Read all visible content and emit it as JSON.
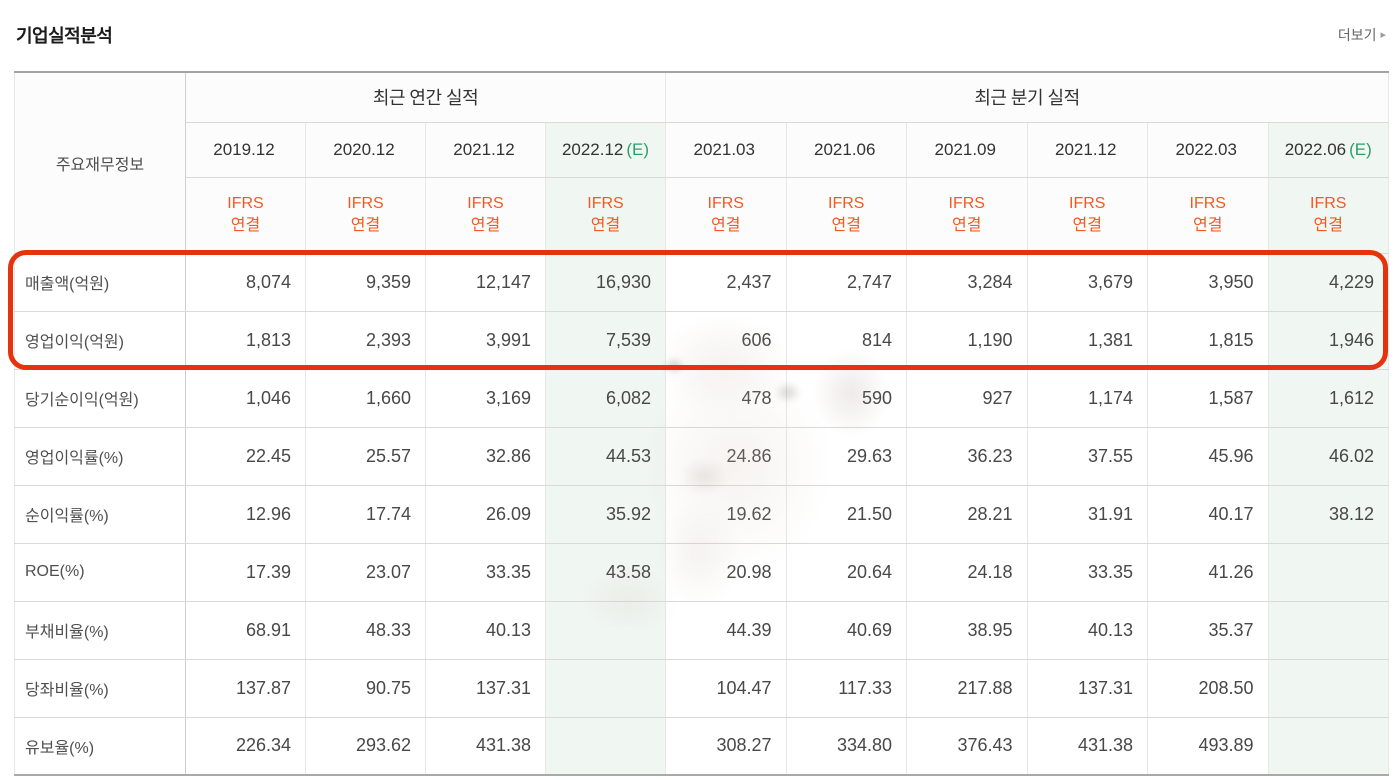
{
  "page": {
    "title": "기업실적분석",
    "more_label": "더보기",
    "more_arrow": "▶"
  },
  "colors": {
    "ifrs_orange": "#f15a22",
    "estimate_green": "#2d9f67",
    "estimate_column_bg": "#f0f6f2",
    "highlight_red": "#e5330e"
  },
  "table": {
    "corner_label": "주요재무정보",
    "groups": {
      "annual": "최근 연간 실적",
      "quarterly": "최근 분기 실적"
    },
    "ifrs_line1": "IFRS",
    "ifrs_line2": "연결",
    "annual_columns": [
      {
        "label": "2019.12",
        "suffix": ""
      },
      {
        "label": "2020.12",
        "suffix": ""
      },
      {
        "label": "2021.12",
        "suffix": ""
      },
      {
        "label": "2022.12",
        "suffix": "(E)"
      }
    ],
    "quarter_columns": [
      {
        "label": "2021.03",
        "suffix": ""
      },
      {
        "label": "2021.06",
        "suffix": ""
      },
      {
        "label": "2021.09",
        "suffix": ""
      },
      {
        "label": "2021.12",
        "suffix": ""
      },
      {
        "label": "2022.03",
        "suffix": ""
      },
      {
        "label": "2022.06",
        "suffix": "(E)"
      }
    ],
    "rows": [
      {
        "label": "매출액(억원)",
        "annual": [
          "8,074",
          "9,359",
          "12,147",
          "16,930"
        ],
        "quarterly": [
          "2,437",
          "2,747",
          "3,284",
          "3,679",
          "3,950",
          "4,229"
        ]
      },
      {
        "label": "영업이익(억원)",
        "annual": [
          "1,813",
          "2,393",
          "3,991",
          "7,539"
        ],
        "quarterly": [
          "606",
          "814",
          "1,190",
          "1,381",
          "1,815",
          "1,946"
        ]
      },
      {
        "label": "당기순이익(억원)",
        "annual": [
          "1,046",
          "1,660",
          "3,169",
          "6,082"
        ],
        "quarterly": [
          "478",
          "590",
          "927",
          "1,174",
          "1,587",
          "1,612"
        ]
      },
      {
        "label": "영업이익률(%)",
        "annual": [
          "22.45",
          "25.57",
          "32.86",
          "44.53"
        ],
        "quarterly": [
          "24.86",
          "29.63",
          "36.23",
          "37.55",
          "45.96",
          "46.02"
        ]
      },
      {
        "label": "순이익률(%)",
        "annual": [
          "12.96",
          "17.74",
          "26.09",
          "35.92"
        ],
        "quarterly": [
          "19.62",
          "21.50",
          "28.21",
          "31.91",
          "40.17",
          "38.12"
        ]
      },
      {
        "label": "ROE(%)",
        "annual": [
          "17.39",
          "23.07",
          "33.35",
          "43.58"
        ],
        "quarterly": [
          "20.98",
          "20.64",
          "24.18",
          "33.35",
          "41.26",
          ""
        ]
      },
      {
        "label": "부채비율(%)",
        "annual": [
          "68.91",
          "48.33",
          "40.13",
          ""
        ],
        "quarterly": [
          "44.39",
          "40.69",
          "38.95",
          "40.13",
          "35.37",
          ""
        ]
      },
      {
        "label": "당좌비율(%)",
        "annual": [
          "137.87",
          "90.75",
          "137.31",
          ""
        ],
        "quarterly": [
          "104.47",
          "117.33",
          "217.88",
          "137.31",
          "208.50",
          ""
        ]
      },
      {
        "label": "유보율(%)",
        "annual": [
          "226.34",
          "293.62",
          "431.38",
          ""
        ],
        "quarterly": [
          "308.27",
          "334.80",
          "376.43",
          "431.38",
          "493.89",
          ""
        ]
      }
    ],
    "highlighted_row_labels": [
      "매출액(억원)",
      "영업이익(억원)"
    ]
  }
}
